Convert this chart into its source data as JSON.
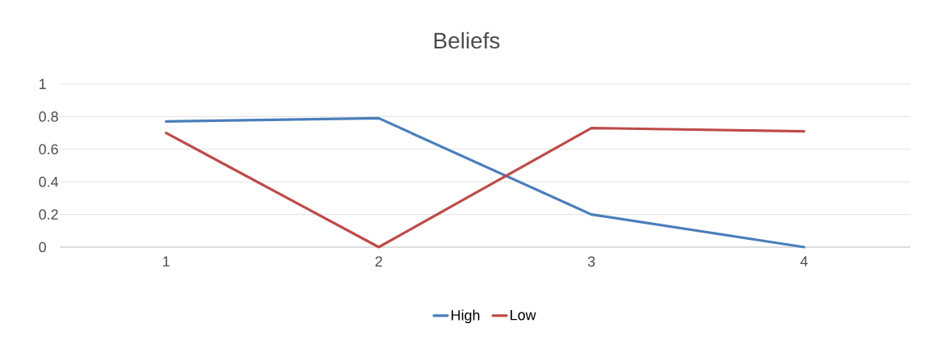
{
  "chart_data": {
    "type": "line",
    "title": "Beliefs",
    "categories": [
      "1",
      "2",
      "3",
      "4"
    ],
    "series": [
      {
        "name": "High",
        "color": "#4a7ebb",
        "values": [
          0.77,
          0.79,
          0.2,
          0
        ]
      },
      {
        "name": "Low",
        "color": "#be4b48",
        "values": [
          0.7,
          0,
          0.73,
          0.71
        ]
      }
    ],
    "ylim": [
      0,
      1
    ],
    "yticks": [
      0,
      0.2,
      0.4,
      0.6,
      0.8,
      1
    ],
    "grid": "y",
    "legend": "bottom",
    "marker": "none",
    "line_style": "solid"
  }
}
